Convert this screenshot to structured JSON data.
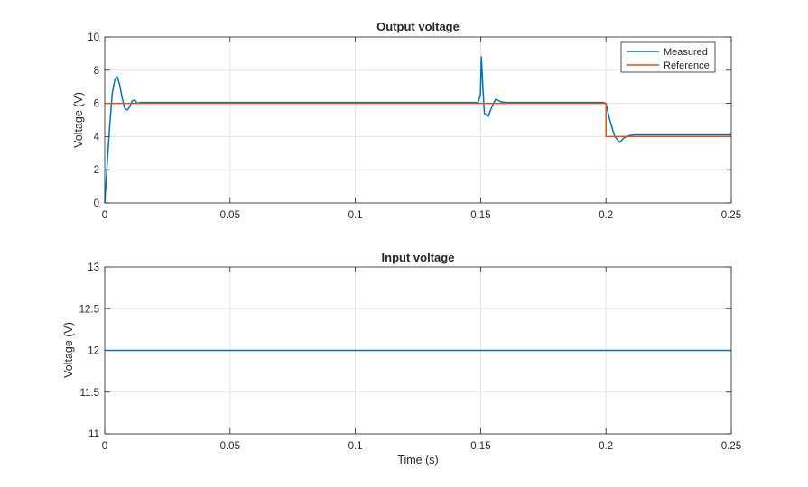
{
  "chart_data": [
    {
      "type": "line",
      "title": "Output voltage",
      "xlabel": "",
      "ylabel": "Voltage (V)",
      "xlim": [
        0,
        0.25
      ],
      "ylim": [
        0,
        10
      ],
      "xticks": [
        0,
        0.05,
        0.1,
        0.15,
        0.2,
        0.25
      ],
      "xtick_labels": [
        "0",
        "0.05",
        "0.1",
        "0.15",
        "0.2",
        "0.25"
      ],
      "yticks": [
        0,
        2,
        4,
        6,
        8,
        10
      ],
      "ytick_labels": [
        "0",
        "2",
        "4",
        "6",
        "8",
        "10"
      ],
      "grid": true,
      "legend": "top-right",
      "series": [
        {
          "name": "Measured",
          "color": "#0072BD",
          "x": [
            0,
            0.0005,
            0.001,
            0.002,
            0.003,
            0.004,
            0.005,
            0.006,
            0.007,
            0.008,
            0.009,
            0.01,
            0.011,
            0.012,
            0.013,
            0.014,
            0.016,
            0.05,
            0.1,
            0.149,
            0.1499,
            0.1503,
            0.1508,
            0.1515,
            0.153,
            0.1545,
            0.156,
            0.158,
            0.16,
            0.199,
            0.2,
            0.2015,
            0.2035,
            0.2055,
            0.207,
            0.209,
            0.211,
            0.213,
            0.216,
            0.25
          ],
          "y": [
            0,
            1.2,
            2.4,
            4.7,
            6.6,
            7.4,
            7.6,
            7.1,
            6.3,
            5.7,
            5.6,
            5.8,
            6.15,
            6.2,
            6.0,
            6.05,
            6.05,
            6.05,
            6.05,
            6.05,
            6.5,
            8.8,
            7.2,
            5.4,
            5.2,
            5.8,
            6.25,
            6.1,
            6.05,
            6.05,
            6.0,
            5.0,
            4.0,
            3.65,
            3.9,
            4.05,
            4.1,
            4.1,
            4.1,
            4.1
          ]
        },
        {
          "name": "Reference",
          "color": "#D95319",
          "x": [
            0,
            0.2,
            0.2,
            0.25
          ],
          "y": [
            6,
            6,
            4,
            4
          ]
        }
      ]
    },
    {
      "type": "line",
      "title": "Input voltage",
      "xlabel": "Time (s)",
      "ylabel": "Voltage (V)",
      "xlim": [
        0,
        0.25
      ],
      "ylim": [
        11,
        13
      ],
      "xticks": [
        0,
        0.05,
        0.1,
        0.15,
        0.2,
        0.25
      ],
      "xtick_labels": [
        "0",
        "0.05",
        "0.1",
        "0.15",
        "0.2",
        "0.25"
      ],
      "yticks": [
        11,
        11.5,
        12,
        12.5,
        13
      ],
      "ytick_labels": [
        "11",
        "11.5",
        "12",
        "12.5",
        "13"
      ],
      "grid": true,
      "series": [
        {
          "color": "#0072BD",
          "x": [
            0,
            0.25
          ],
          "y": [
            12,
            12
          ]
        }
      ]
    }
  ]
}
